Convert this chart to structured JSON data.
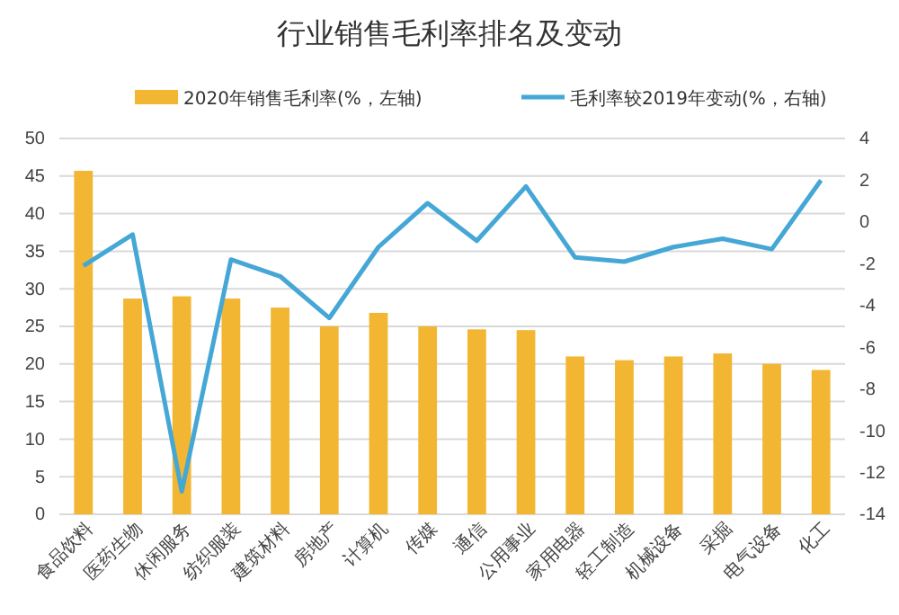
{
  "chart_data": {
    "type": "bar",
    "title": "行业销售毛利率排名及变动",
    "categories": [
      "食品饮料",
      "医药生物",
      "休闲服务",
      "纺织服装",
      "建筑材料",
      "房地产",
      "计算机",
      "传媒",
      "通信",
      "公用事业",
      "家用电器",
      "轻工制造",
      "机械设备",
      "采掘",
      "电气设备",
      "化工"
    ],
    "series": [
      {
        "name": "2020年销售毛利率(%，左轴)",
        "color": "#f2b632",
        "values": [
          45.7,
          28.7,
          29,
          28.7,
          27.5,
          25,
          26.8,
          25,
          24.6,
          24.5,
          21,
          20.5,
          21,
          21.4,
          20,
          19.2
        ]
      },
      {
        "name": "毛利率较2019年变动(%，右轴)",
        "type": "line",
        "axis": "y2",
        "color": "#45a7d6",
        "values": [
          -2.1,
          -0.6,
          -12.9,
          -1.8,
          -2.6,
          -4.6,
          -1.2,
          0.9,
          -0.9,
          1.7,
          -1.7,
          -1.9,
          -1.2,
          -0.8,
          -1.3,
          2.0
        ]
      }
    ],
    "ylim": [
      0,
      50
    ],
    "yticks": [
      0,
      5,
      10,
      15,
      20,
      25,
      30,
      35,
      40,
      45,
      50
    ],
    "y2lim": [
      -14,
      4
    ],
    "y2ticks": [
      -14,
      -12,
      -10,
      -8,
      -6,
      -4,
      -2,
      0,
      2,
      4
    ],
    "grid": "y",
    "legend": "top"
  }
}
